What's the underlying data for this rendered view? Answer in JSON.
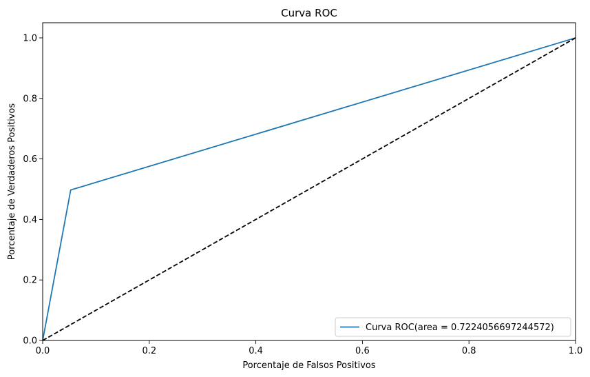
{
  "chart_data": {
    "type": "line",
    "title": "Curva ROC",
    "xlabel": "Porcentaje de Falsos Positivos",
    "ylabel": "Porcentaje de Verdaderos Positivos",
    "xlim": [
      0.0,
      1.0
    ],
    "ylim": [
      0.0,
      1.05
    ],
    "x_ticks": [
      "0.0",
      "0.2",
      "0.4",
      "0.6",
      "0.8",
      "1.0"
    ],
    "y_ticks": [
      "0.0",
      "0.2",
      "0.4",
      "0.6",
      "0.8",
      "1.0"
    ],
    "grid": false,
    "legend_position": "lower-right",
    "series": [
      {
        "name": "Curva ROC(area = 0.7224056697244572)",
        "color": "#1f77b4",
        "style": "solid",
        "x": [
          0.0,
          0.0526,
          1.0
        ],
        "y": [
          0.0,
          0.4974,
          1.0
        ]
      },
      {
        "color": "#000000",
        "style": "dashed",
        "x": [
          0.0,
          1.0
        ],
        "y": [
          0.0,
          1.0
        ]
      }
    ]
  }
}
